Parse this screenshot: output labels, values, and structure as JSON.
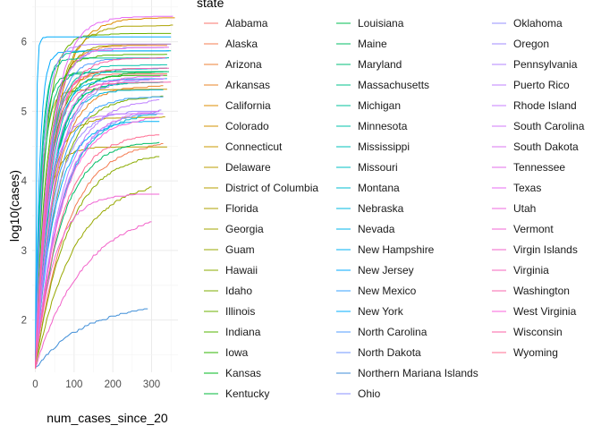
{
  "chart_data": {
    "type": "line",
    "xlabel": "num_cases_since_20",
    "ylabel": "log10(cases)",
    "xlim": [
      -8,
      368
    ],
    "ylim": [
      1.25,
      6.6
    ],
    "x_ticks": [
      0,
      100,
      200,
      300
    ],
    "y_ticks": [
      2,
      3,
      4,
      5,
      6
    ],
    "grid": true,
    "legend_title": "state",
    "legend_position": "right",
    "series": [
      {
        "name": "Alabama",
        "color": "#F8766D",
        "end_x": 340,
        "y_end": 5.52,
        "k": 0.035
      },
      {
        "name": "Alaska",
        "color": "#F47C52",
        "end_x": 330,
        "y_end": 4.52,
        "k": 0.012
      },
      {
        "name": "Arizona",
        "color": "#EE8035",
        "end_x": 340,
        "y_end": 5.93,
        "k": 0.03
      },
      {
        "name": "Arkansas",
        "color": "#E88526",
        "end_x": 330,
        "y_end": 5.35,
        "k": 0.02
      },
      {
        "name": "California",
        "color": "#DE8C00",
        "end_x": 360,
        "y_end": 6.33,
        "k": 0.022
      },
      {
        "name": "Colorado",
        "color": "#D39200",
        "end_x": 340,
        "y_end": 5.6,
        "k": 0.028
      },
      {
        "name": "Connecticut",
        "color": "#C99800",
        "end_x": 340,
        "y_end": 5.3,
        "k": 0.06
      },
      {
        "name": "Delaware",
        "color": "#BB9D00",
        "end_x": 335,
        "y_end": 4.9,
        "k": 0.03
      },
      {
        "name": "District of Columbia",
        "color": "#B79F00",
        "end_x": 340,
        "y_end": 4.47,
        "k": 0.04
      },
      {
        "name": "Florida",
        "color": "#ADA200",
        "end_x": 355,
        "y_end": 6.22,
        "k": 0.025
      },
      {
        "name": "Georgia",
        "color": "#A3A500",
        "end_x": 350,
        "y_end": 5.95,
        "k": 0.03
      },
      {
        "name": "Guam",
        "color": "#98A800",
        "end_x": 300,
        "y_end": 3.9,
        "k": 0.01
      },
      {
        "name": "Hawaii",
        "color": "#8BAB00",
        "end_x": 320,
        "y_end": 4.35,
        "k": 0.012
      },
      {
        "name": "Idaho",
        "color": "#7CAE00",
        "end_x": 330,
        "y_end": 5.2,
        "k": 0.018
      },
      {
        "name": "Illinois",
        "color": "#6BB100",
        "end_x": 350,
        "y_end": 6.1,
        "k": 0.04
      },
      {
        "name": "Indiana",
        "color": "#53B400",
        "end_x": 340,
        "y_end": 5.8,
        "k": 0.035
      },
      {
        "name": "Iowa",
        "color": "#2FB600",
        "end_x": 340,
        "y_end": 5.5,
        "k": 0.03
      },
      {
        "name": "Kansas",
        "color": "#00B81F",
        "end_x": 330,
        "y_end": 5.4,
        "k": 0.025
      },
      {
        "name": "Kentucky",
        "color": "#00BA38",
        "end_x": 330,
        "y_end": 5.55,
        "k": 0.022
      },
      {
        "name": "Louisiana",
        "color": "#00BC51",
        "end_x": 340,
        "y_end": 5.55,
        "k": 0.06
      },
      {
        "name": "Maine",
        "color": "#00BD66",
        "end_x": 320,
        "y_end": 4.55,
        "k": 0.015
      },
      {
        "name": "Maryland",
        "color": "#00BE78",
        "end_x": 345,
        "y_end": 5.55,
        "k": 0.05
      },
      {
        "name": "Massachusetts",
        "color": "#00C08B",
        "end_x": 345,
        "y_end": 5.75,
        "k": 0.07
      },
      {
        "name": "Michigan",
        "color": "#00C09B",
        "end_x": 350,
        "y_end": 5.85,
        "k": 0.06
      },
      {
        "name": "Minnesota",
        "color": "#00C1AB",
        "end_x": 340,
        "y_end": 5.65,
        "k": 0.03
      },
      {
        "name": "Mississippi",
        "color": "#00C1BB",
        "end_x": 330,
        "y_end": 5.4,
        "k": 0.025
      },
      {
        "name": "Missouri",
        "color": "#00BFC4",
        "end_x": 340,
        "y_end": 5.6,
        "k": 0.025
      },
      {
        "name": "Montana",
        "color": "#00BDD0",
        "end_x": 320,
        "y_end": 4.95,
        "k": 0.015
      },
      {
        "name": "Nebraska",
        "color": "#00BAE0",
        "end_x": 330,
        "y_end": 5.3,
        "k": 0.025
      },
      {
        "name": "Nevada",
        "color": "#00B6EB",
        "end_x": 340,
        "y_end": 5.45,
        "k": 0.03
      },
      {
        "name": "New Hampshire",
        "color": "#00B0F6",
        "end_x": 320,
        "y_end": 4.85,
        "k": 0.02
      },
      {
        "name": "New Jersey",
        "color": "#00A9FF",
        "end_x": 345,
        "y_end": 5.85,
        "k": 0.09
      },
      {
        "name": "New Mexico",
        "color": "#35A2FF",
        "end_x": 330,
        "y_end": 5.2,
        "k": 0.02
      },
      {
        "name": "New York",
        "color": "#00ACFC",
        "end_x": 350,
        "y_end": 6.05,
        "k": 0.4
      },
      {
        "name": "North Carolina",
        "color": "#529EFF",
        "end_x": 340,
        "y_end": 5.75,
        "k": 0.03
      },
      {
        "name": "North Dakota",
        "color": "#6F97FF",
        "end_x": 320,
        "y_end": 4.98,
        "k": 0.015
      },
      {
        "name": "Northern Mariana Islands",
        "color": "#3F8ED8",
        "end_x": 290,
        "y_end": 2.15,
        "k": 0.008
      },
      {
        "name": "Ohio",
        "color": "#8A90FF",
        "end_x": 340,
        "y_end": 5.9,
        "k": 0.03
      },
      {
        "name": "Oklahoma",
        "color": "#9590FF",
        "end_x": 330,
        "y_end": 5.45,
        "k": 0.02
      },
      {
        "name": "Oregon",
        "color": "#A08BFF",
        "end_x": 325,
        "y_end": 5.0,
        "k": 0.02
      },
      {
        "name": "Pennsylvania",
        "color": "#B385FF",
        "end_x": 350,
        "y_end": 5.95,
        "k": 0.05
      },
      {
        "name": "Puerto Rico",
        "color": "#BF80FF",
        "end_x": 320,
        "y_end": 5.15,
        "k": 0.015
      },
      {
        "name": "Rhode Island",
        "color": "#C77CFF",
        "end_x": 330,
        "y_end": 4.95,
        "k": 0.03
      },
      {
        "name": "South Carolina",
        "color": "#D078F8",
        "end_x": 335,
        "y_end": 5.45,
        "k": 0.025
      },
      {
        "name": "South Dakota",
        "color": "#D974F1",
        "end_x": 320,
        "y_end": 5.0,
        "k": 0.015
      },
      {
        "name": "Tennessee",
        "color": "#E36EE9",
        "end_x": 345,
        "y_end": 5.9,
        "k": 0.03
      },
      {
        "name": "Texas",
        "color": "#E76BF3",
        "end_x": 355,
        "y_end": 6.35,
        "k": 0.025
      },
      {
        "name": "Utah",
        "color": "#EC69DF",
        "end_x": 330,
        "y_end": 5.5,
        "k": 0.02
      },
      {
        "name": "Vermont",
        "color": "#F066D4",
        "end_x": 320,
        "y_end": 3.8,
        "k": 0.02
      },
      {
        "name": "Virgin Islands",
        "color": "#F263C9",
        "end_x": 300,
        "y_end": 3.4,
        "k": 0.008
      },
      {
        "name": "Virginia",
        "color": "#F464BC",
        "end_x": 345,
        "y_end": 5.6,
        "k": 0.03
      },
      {
        "name": "Washington",
        "color": "#F766AE",
        "end_x": 350,
        "y_end": 5.4,
        "k": 0.03
      },
      {
        "name": "West Virginia",
        "color": "#FA62DB",
        "end_x": 320,
        "y_end": 4.9,
        "k": 0.015
      },
      {
        "name": "Wisconsin",
        "color": "#FB61A6",
        "end_x": 335,
        "y_end": 5.75,
        "k": 0.025
      },
      {
        "name": "Wyoming",
        "color": "#FF6C91",
        "end_x": 320,
        "y_end": 4.65,
        "k": 0.015
      }
    ]
  }
}
